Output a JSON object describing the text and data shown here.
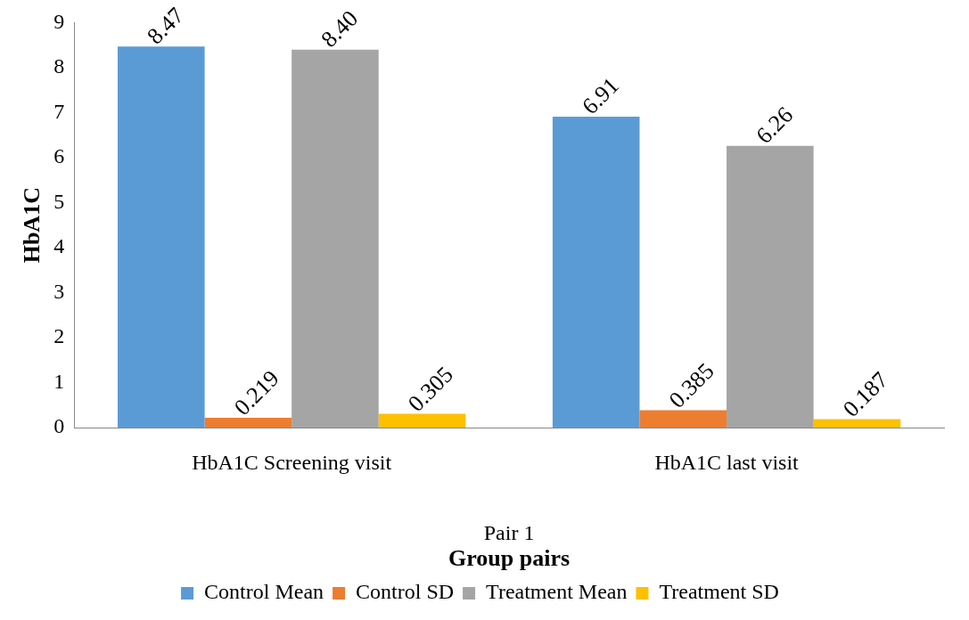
{
  "chart_data": {
    "type": "bar",
    "ylabel": "HbA1C",
    "xlabel": "Group pairs",
    "annotations": [
      "Pair 1"
    ],
    "categories": [
      "HbA1C Screening visit",
      "HbA1C last visit"
    ],
    "series": [
      {
        "name": "Control Mean",
        "color": "#5b9bd5",
        "values": [
          8.47,
          6.91
        ],
        "value_labels": [
          "8.47",
          "6.91"
        ]
      },
      {
        "name": "Control SD",
        "color": "#ed7d31",
        "values": [
          0.219,
          0.385
        ],
        "value_labels": [
          "0.219",
          "0.385"
        ]
      },
      {
        "name": "Treatment Mean",
        "color": "#a5a5a5",
        "values": [
          8.4,
          6.26
        ],
        "value_labels": [
          "8.40",
          "6.26"
        ]
      },
      {
        "name": "Treatment SD",
        "color": "#ffc000",
        "values": [
          0.305,
          0.187
        ],
        "value_labels": [
          "0.305",
          "0.187"
        ]
      }
    ],
    "ylim": [
      0,
      9
    ],
    "yticks": [
      0,
      1,
      2,
      3,
      4,
      5,
      6,
      7,
      8,
      9
    ],
    "grid": false,
    "legend": "bottom"
  }
}
